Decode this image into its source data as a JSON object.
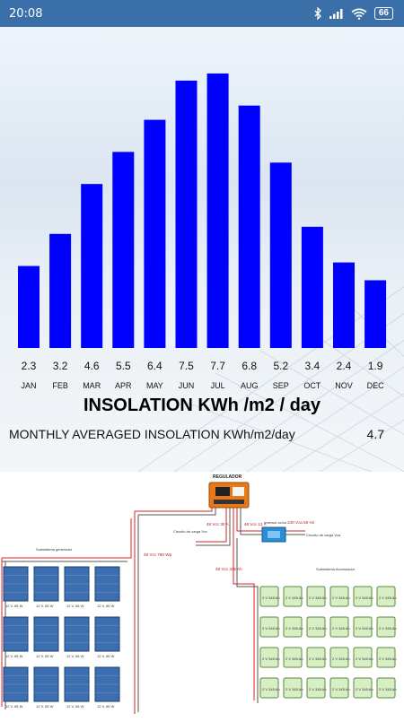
{
  "status_bar": {
    "time": "20:08",
    "battery": "66"
  },
  "chart_data": {
    "type": "bar",
    "categories": [
      "JAN",
      "FEB",
      "MAR",
      "APR",
      "MAY",
      "JUN",
      "JUL",
      "AUG",
      "SEP",
      "OCT",
      "NOV",
      "DEC"
    ],
    "values": [
      2.3,
      3.2,
      4.6,
      5.5,
      6.4,
      7.5,
      7.7,
      6.8,
      5.2,
      3.4,
      2.4,
      1.9
    ],
    "title": "INSOLATION KWh /m2 / day",
    "xlabel": "",
    "ylabel": "",
    "ylim": [
      0,
      8
    ],
    "color": "#0000ff"
  },
  "summary": {
    "label": "MONTHLY AVERAGED INSOLATION  KWh/m2/day",
    "value": "4.7"
  },
  "diagram": {
    "regulador_label": "REGULADOR",
    "generator_label": "Subsistema generador",
    "accumulator_label": "Subsistema Acumulador",
    "inverter_label": "Inversor cc/ca",
    "vcc_circuit_label": "Circuito de carga Vcc",
    "vca_circuit_label": "Circuito de carga Vca",
    "gen_line_label": "48 Vcc 780 Wp",
    "load_line_label": "48 Vcc 30 A",
    "inv_in_label": "48 Vcc 13 A",
    "inv_out_label": "230 Vca 50 Hz",
    "battery_line_label": "48 Vcc 345 Ah",
    "panel_label": "12 V, 65 W",
    "battery_label": "2 V 345 Ah"
  }
}
